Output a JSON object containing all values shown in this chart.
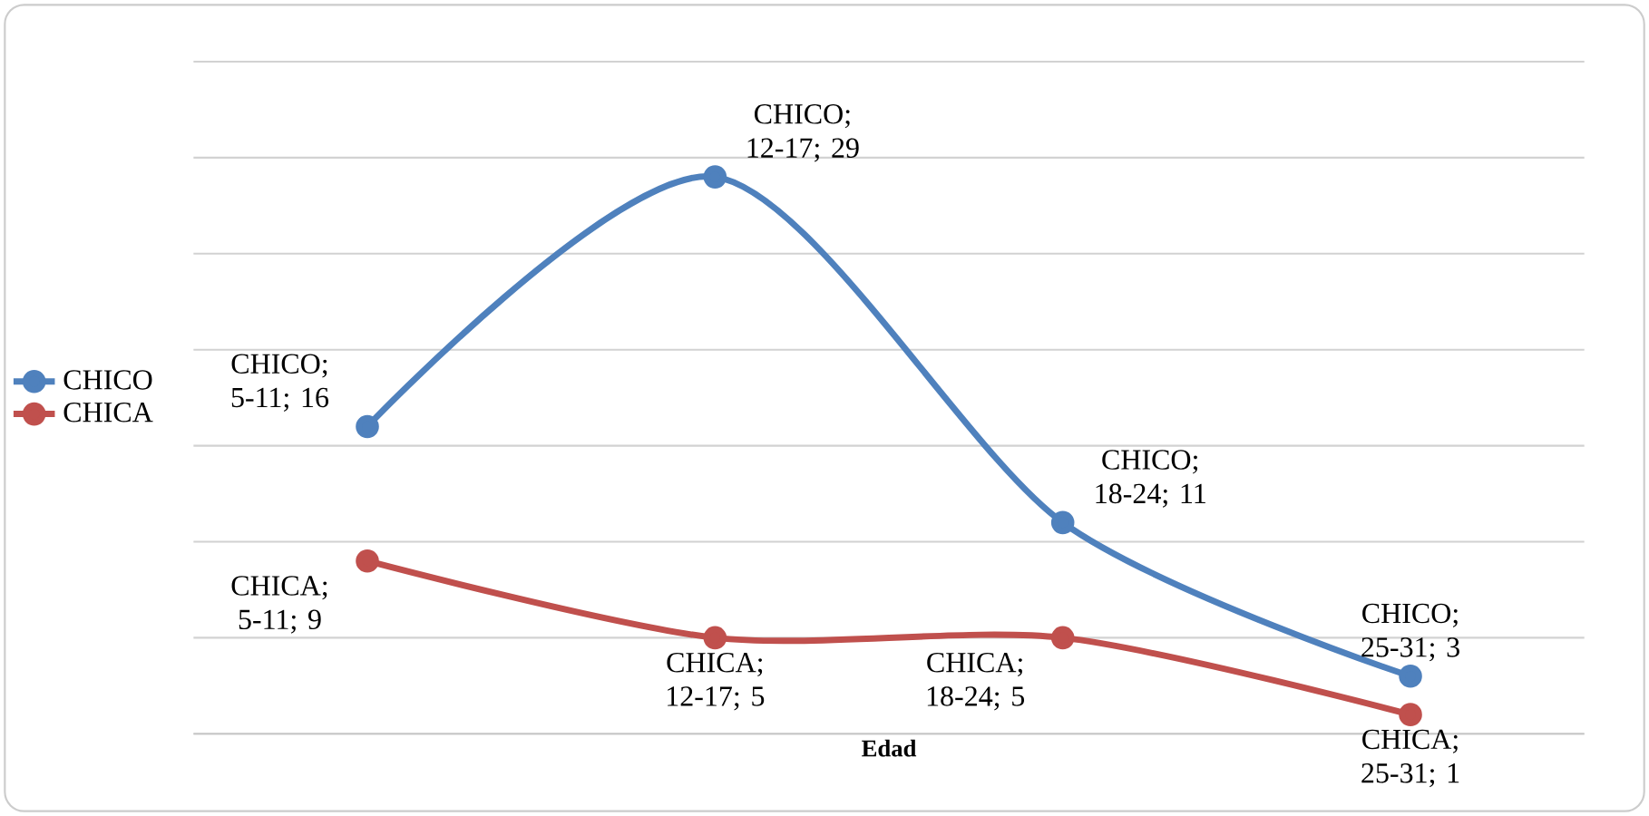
{
  "chart_data": {
    "type": "line",
    "xlabel": "Edad",
    "categories": [
      null,
      null,
      null,
      null
    ],
    "series": [
      {
        "name": "CHICO",
        "color": "#4f81bd",
        "values": [
          16,
          29,
          11,
          3
        ],
        "value_labels": [
          "CHICO; 5-11; 16",
          "CHICO; 12-17; 29",
          "CHICO; 18-24; 11",
          "CHICO; 25-31; 3"
        ]
      },
      {
        "name": "CHICA",
        "color": "#c0504d",
        "values": [
          9,
          5,
          5,
          1
        ],
        "value_labels": [
          "CHICA; 5-11; 9",
          "CHICA; 12-17; 5",
          "CHICA; 18-24; 5",
          "CHICA; 25-31; 1"
        ]
      }
    ],
    "ylim": [
      0,
      35
    ],
    "yticks": [
      {
        "value": 0,
        "label": null
      },
      {
        "value": 5,
        "label": null
      },
      {
        "value": 10,
        "label": null
      },
      {
        "value": 15,
        "label": null
      },
      {
        "value": 20,
        "label": null
      },
      {
        "value": 25,
        "label": null
      },
      {
        "value": 30,
        "label": null
      },
      {
        "value": 35,
        "label": null
      }
    ],
    "grid": "y",
    "legend": "left",
    "marker": "circle",
    "line_style": "solid"
  }
}
